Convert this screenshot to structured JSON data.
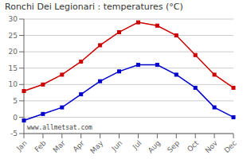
{
  "chart_data": {
    "type": "line",
    "title": "Ronchi Dei Legionari : temperatures (°C)",
    "categories": [
      "Jan",
      "Feb",
      "Mar",
      "Apr",
      "May",
      "Jun",
      "Jul",
      "Aug",
      "Sep",
      "Oct",
      "Nov",
      "Dec"
    ],
    "series": [
      {
        "color": "#cc0000",
        "marker": "square",
        "values": [
          8,
          10,
          13,
          17,
          22,
          26,
          29,
          28,
          25,
          19,
          13,
          9
        ]
      },
      {
        "color": "#0000cc",
        "marker": "square",
        "values": [
          -1,
          1,
          3,
          7,
          11,
          14,
          16,
          16,
          13,
          9,
          3,
          0
        ]
      }
    ],
    "ylim": [
      -5,
      30
    ],
    "yticks": [
      -5,
      0,
      5,
      10,
      15,
      20,
      25,
      30
    ],
    "grid": true,
    "annotation": "www.allmetsat.com"
  }
}
